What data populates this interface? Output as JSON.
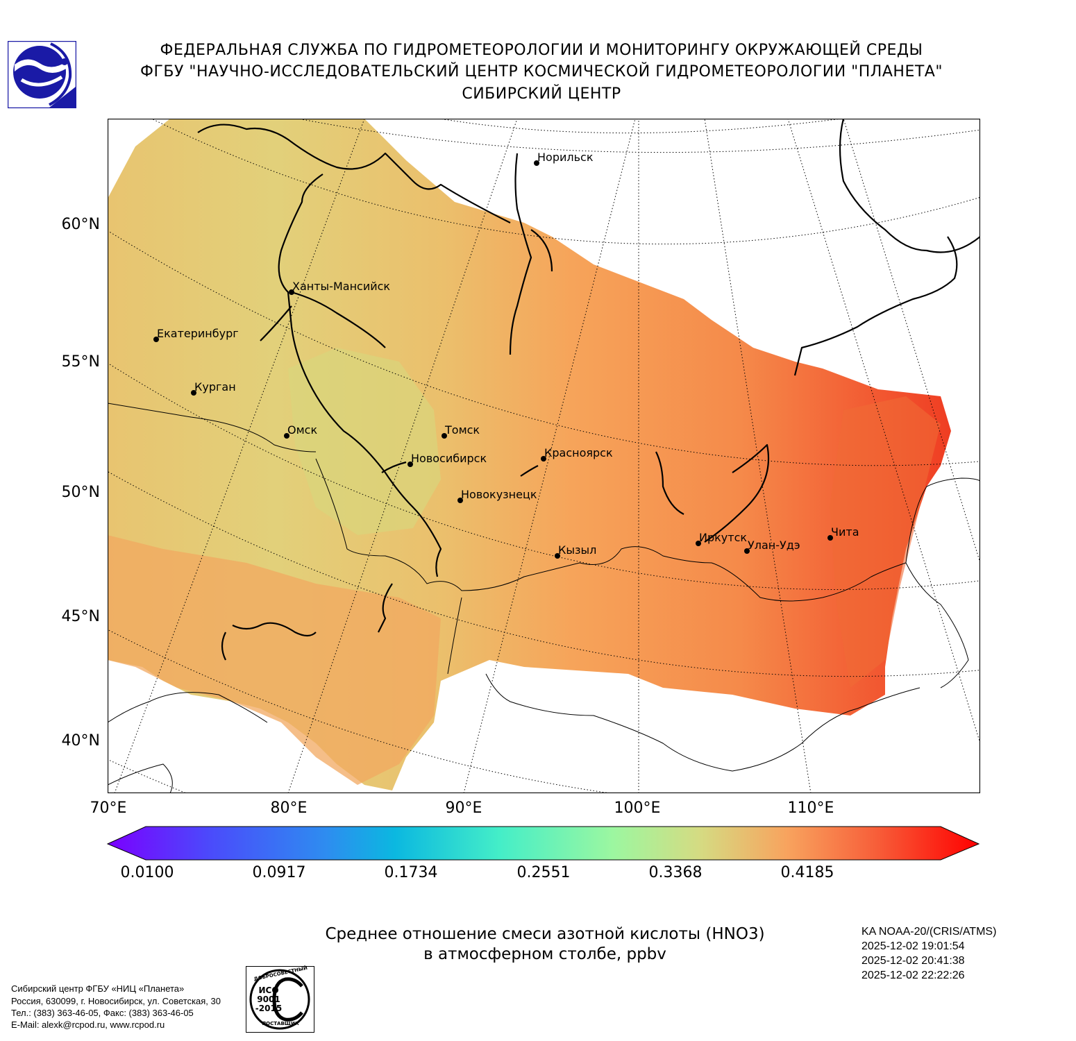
{
  "header": {
    "line1": "ФЕДЕРАЛЬНАЯ СЛУЖБА ПО ГИДРОМЕТЕОРОЛОГИИ И МОНИТОРИНГУ ОКРУЖАЮЩЕЙ СРЕДЫ",
    "line2": "ФГБУ \"НАУЧНО-ИССЛЕДОВАТЕЛЬСКИЙ ЦЕНТР КОСМИЧЕСКОЙ ГИДРОМЕТЕОРОЛОГИИ \"ПЛАНЕТА\"",
    "line3": "СИБИРСКИЙ ЦЕНТР"
  },
  "colors": {
    "logo_blue": "#1a1aa6",
    "field_low": "#d9d67c",
    "field_mid": "#f2b263",
    "field_high": "#f05a2e",
    "coast": "#000000"
  },
  "map": {
    "lat_labels": [
      "60°N",
      "55°N",
      "50°N",
      "45°N",
      "40°N"
    ],
    "lon_labels": [
      "70°E",
      "80°E",
      "90°E",
      "100°E",
      "110°E"
    ],
    "cities": [
      {
        "name": "Норильск"
      },
      {
        "name": "Ханты-Мансийск"
      },
      {
        "name": "Екатеринбург"
      },
      {
        "name": "Курган"
      },
      {
        "name": "Омск"
      },
      {
        "name": "Томск"
      },
      {
        "name": "Новосибирск"
      },
      {
        "name": "Красноярск"
      },
      {
        "name": "Новокузнецк"
      },
      {
        "name": "Кызыл"
      },
      {
        "name": "Иркутск"
      },
      {
        "name": "Улан-Удэ"
      },
      {
        "name": "Чита"
      }
    ]
  },
  "colorbar": {
    "ticks": [
      "0.0100",
      "0.0917",
      "0.1734",
      "0.2551",
      "0.3368",
      "0.4185"
    ]
  },
  "title": {
    "line1": "Среднее отношение смеси азотной кислоты (HNO3)",
    "line2": "в атмосферном столбе, ppbv"
  },
  "satellite": {
    "name": "KA NOAA-20/(CRIS/ATMS)",
    "times": [
      "2025-12-02 19:01:54",
      "2025-12-02 20:41:38",
      "2025-12-02 22:22:26"
    ]
  },
  "footer": {
    "org": "Сибирский центр ФГБУ «НИЦ «Планета»",
    "address": "Россия, 630099, г. Новосибирск, ул. Советская, 30",
    "phone": "Тел.: (383) 363-46-05, Факс: (383) 363-46-05",
    "email": "E-Mail: alexk@rcpod.ru, www.rcpod.ru"
  },
  "iso_badge": {
    "top_text": "ДОБРОСОВЕСТНЫЙ",
    "line1": "ИСО",
    "line2": "9001",
    "line3": "-2015",
    "bottom_text": "ПОСТАВЩИК"
  }
}
